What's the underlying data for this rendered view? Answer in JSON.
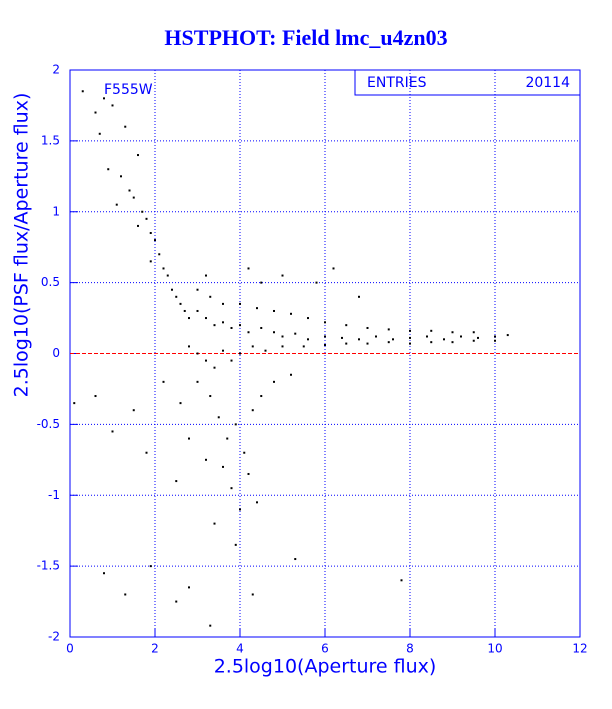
{
  "chart_data": {
    "type": "scatter",
    "title": "HSTPHOT: Field lmc_u4zn03",
    "x_label": "2.5log10(Aperture flux)",
    "y_label": "2.5log10(PSF flux/Aperture flux)",
    "annotation": "F555W",
    "stats": {
      "label": "ENTRIES",
      "value": 20114
    },
    "xlim": [
      0,
      12
    ],
    "ylim": [
      -2,
      2
    ],
    "xticks": [
      0,
      2,
      4,
      6,
      8,
      10,
      12
    ],
    "yticks": [
      -2,
      -1.5,
      -1,
      -0.5,
      0,
      0.5,
      1,
      1.5,
      2
    ],
    "grid": true,
    "reference_line": {
      "y": 0,
      "color": "#ff0000"
    },
    "color": "#000000",
    "x": [
      0.3,
      0.6,
      0.8,
      1.0,
      1.3,
      0.7,
      1.6,
      0.9,
      1.2,
      1.4,
      1.1,
      1.5,
      1.7,
      1.8,
      1.9,
      1.6,
      2.0,
      2.1,
      2.2,
      1.9,
      2.3,
      2.4,
      2.5,
      2.6,
      2.7,
      2.8,
      3.0,
      3.2,
      3.4,
      3.6,
      3.8,
      4.0,
      4.2,
      4.5,
      4.8,
      5.0,
      5.3,
      5.6,
      6.0,
      6.4,
      6.8,
      7.2,
      7.6,
      8.0,
      8.4,
      8.8,
      9.2,
      9.6,
      10.0,
      10.3,
      2.8,
      3.0,
      3.2,
      3.4,
      3.6,
      3.8,
      4.0,
      4.3,
      4.6,
      5.0,
      5.5,
      6.0,
      6.5,
      7.0,
      7.5,
      8.0,
      8.5,
      9.0,
      9.5,
      10.0,
      3.0,
      3.3,
      3.6,
      4.0,
      4.4,
      4.8,
      5.2,
      5.6,
      6.0,
      6.5,
      7.0,
      7.5,
      8.0,
      8.5,
      9.0,
      9.5,
      4.2,
      5.0,
      5.8,
      6.2,
      6.8,
      3.2,
      4.5,
      3.0,
      3.3,
      3.5,
      3.7,
      3.9,
      4.1,
      4.3,
      3.6,
      3.8,
      4.0,
      4.2,
      4.5,
      4.8,
      5.2,
      3.4,
      3.9,
      4.4,
      3.2,
      2.6,
      2.8,
      2.2,
      2.5,
      1.5,
      1.8,
      0.6,
      1.0,
      1.3,
      0.8,
      2.5,
      3.3,
      4.3,
      7.8,
      2.8,
      5.3,
      0.1,
      1.9
    ],
    "values": [
      1.85,
      1.7,
      1.8,
      1.75,
      1.6,
      1.55,
      1.4,
      1.3,
      1.25,
      1.15,
      1.05,
      1.1,
      1.0,
      0.95,
      0.85,
      0.9,
      0.8,
      0.7,
      0.6,
      0.65,
      0.55,
      0.45,
      0.4,
      0.35,
      0.3,
      0.25,
      0.3,
      0.25,
      0.2,
      0.22,
      0.18,
      0.2,
      0.15,
      0.18,
      0.15,
      0.12,
      0.14,
      0.1,
      0.12,
      0.11,
      0.1,
      0.12,
      0.1,
      0.11,
      0.12,
      0.1,
      0.12,
      0.11,
      0.12,
      0.13,
      0.05,
      0.0,
      -0.05,
      -0.1,
      0.02,
      -0.05,
      0.0,
      0.05,
      0.02,
      0.05,
      0.05,
      0.06,
      0.07,
      0.07,
      0.08,
      0.07,
      0.08,
      0.08,
      0.09,
      0.09,
      0.45,
      0.4,
      0.35,
      0.35,
      0.32,
      0.3,
      0.28,
      0.25,
      0.22,
      0.2,
      0.18,
      0.17,
      0.16,
      0.16,
      0.15,
      0.15,
      0.6,
      0.55,
      0.5,
      0.6,
      0.4,
      0.55,
      0.5,
      -0.2,
      -0.3,
      -0.45,
      -0.6,
      -0.5,
      -0.7,
      -0.4,
      -0.8,
      -0.95,
      -1.1,
      -0.85,
      -0.3,
      -0.2,
      -0.15,
      -1.2,
      -1.35,
      -1.05,
      -0.75,
      -0.35,
      -0.6,
      -0.2,
      -0.9,
      -0.4,
      -0.7,
      -0.3,
      -0.55,
      -1.7,
      -1.55,
      -1.75,
      -1.92,
      -1.7,
      -1.6,
      -1.65,
      -1.45,
      -0.35,
      -1.5
    ]
  }
}
